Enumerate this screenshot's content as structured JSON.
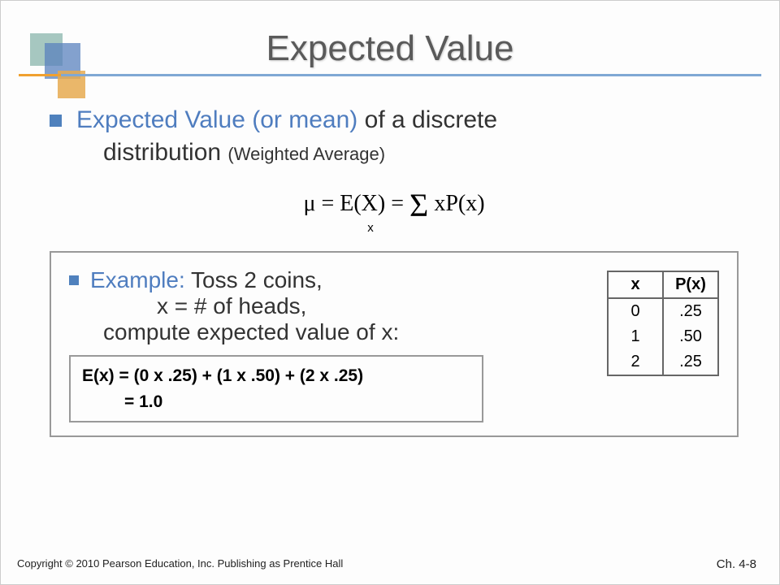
{
  "colors": {
    "accent_blue": "#4f7dbf",
    "bullet": "#4f81bd",
    "rule_orange": "#f0a030",
    "rule_blue": "#7fa8d4",
    "box_border": "#999999",
    "table_border": "#666666",
    "text": "#333333",
    "title": "#5a5a5a",
    "logo_green": "rgba(120,170,160,0.65)",
    "logo_blue": "rgba(90,130,190,0.75)",
    "logo_orange": "rgba(230,170,80,0.85)"
  },
  "title": "Expected Value",
  "defn": {
    "accent": "Expected Value (or mean)",
    "rest": " of a discrete",
    "line2a": "distribution ",
    "line2b": "(Weighted Average)"
  },
  "formula": {
    "lhs": "μ = E(X) = ",
    "sigma": "Σ",
    "rhs": " xP(x)",
    "sub": "x"
  },
  "example": {
    "label": "Example:",
    "l1": " Toss 2 coins,",
    "l2": "x = # of heads,",
    "l3": "compute expected value of x:",
    "resA": "E(x) = (0 x .25) + (1 x .50) + (2 x .25)",
    "resB": "= 1.0"
  },
  "table": {
    "headers": [
      "x",
      "P(x)"
    ],
    "rows": [
      [
        "0",
        ".25"
      ],
      [
        "1",
        ".50"
      ],
      [
        "2",
        ".25"
      ]
    ]
  },
  "footer": {
    "left": "Copyright © 2010 Pearson Education, Inc. Publishing as Prentice Hall",
    "right": "Ch. 4-8"
  }
}
